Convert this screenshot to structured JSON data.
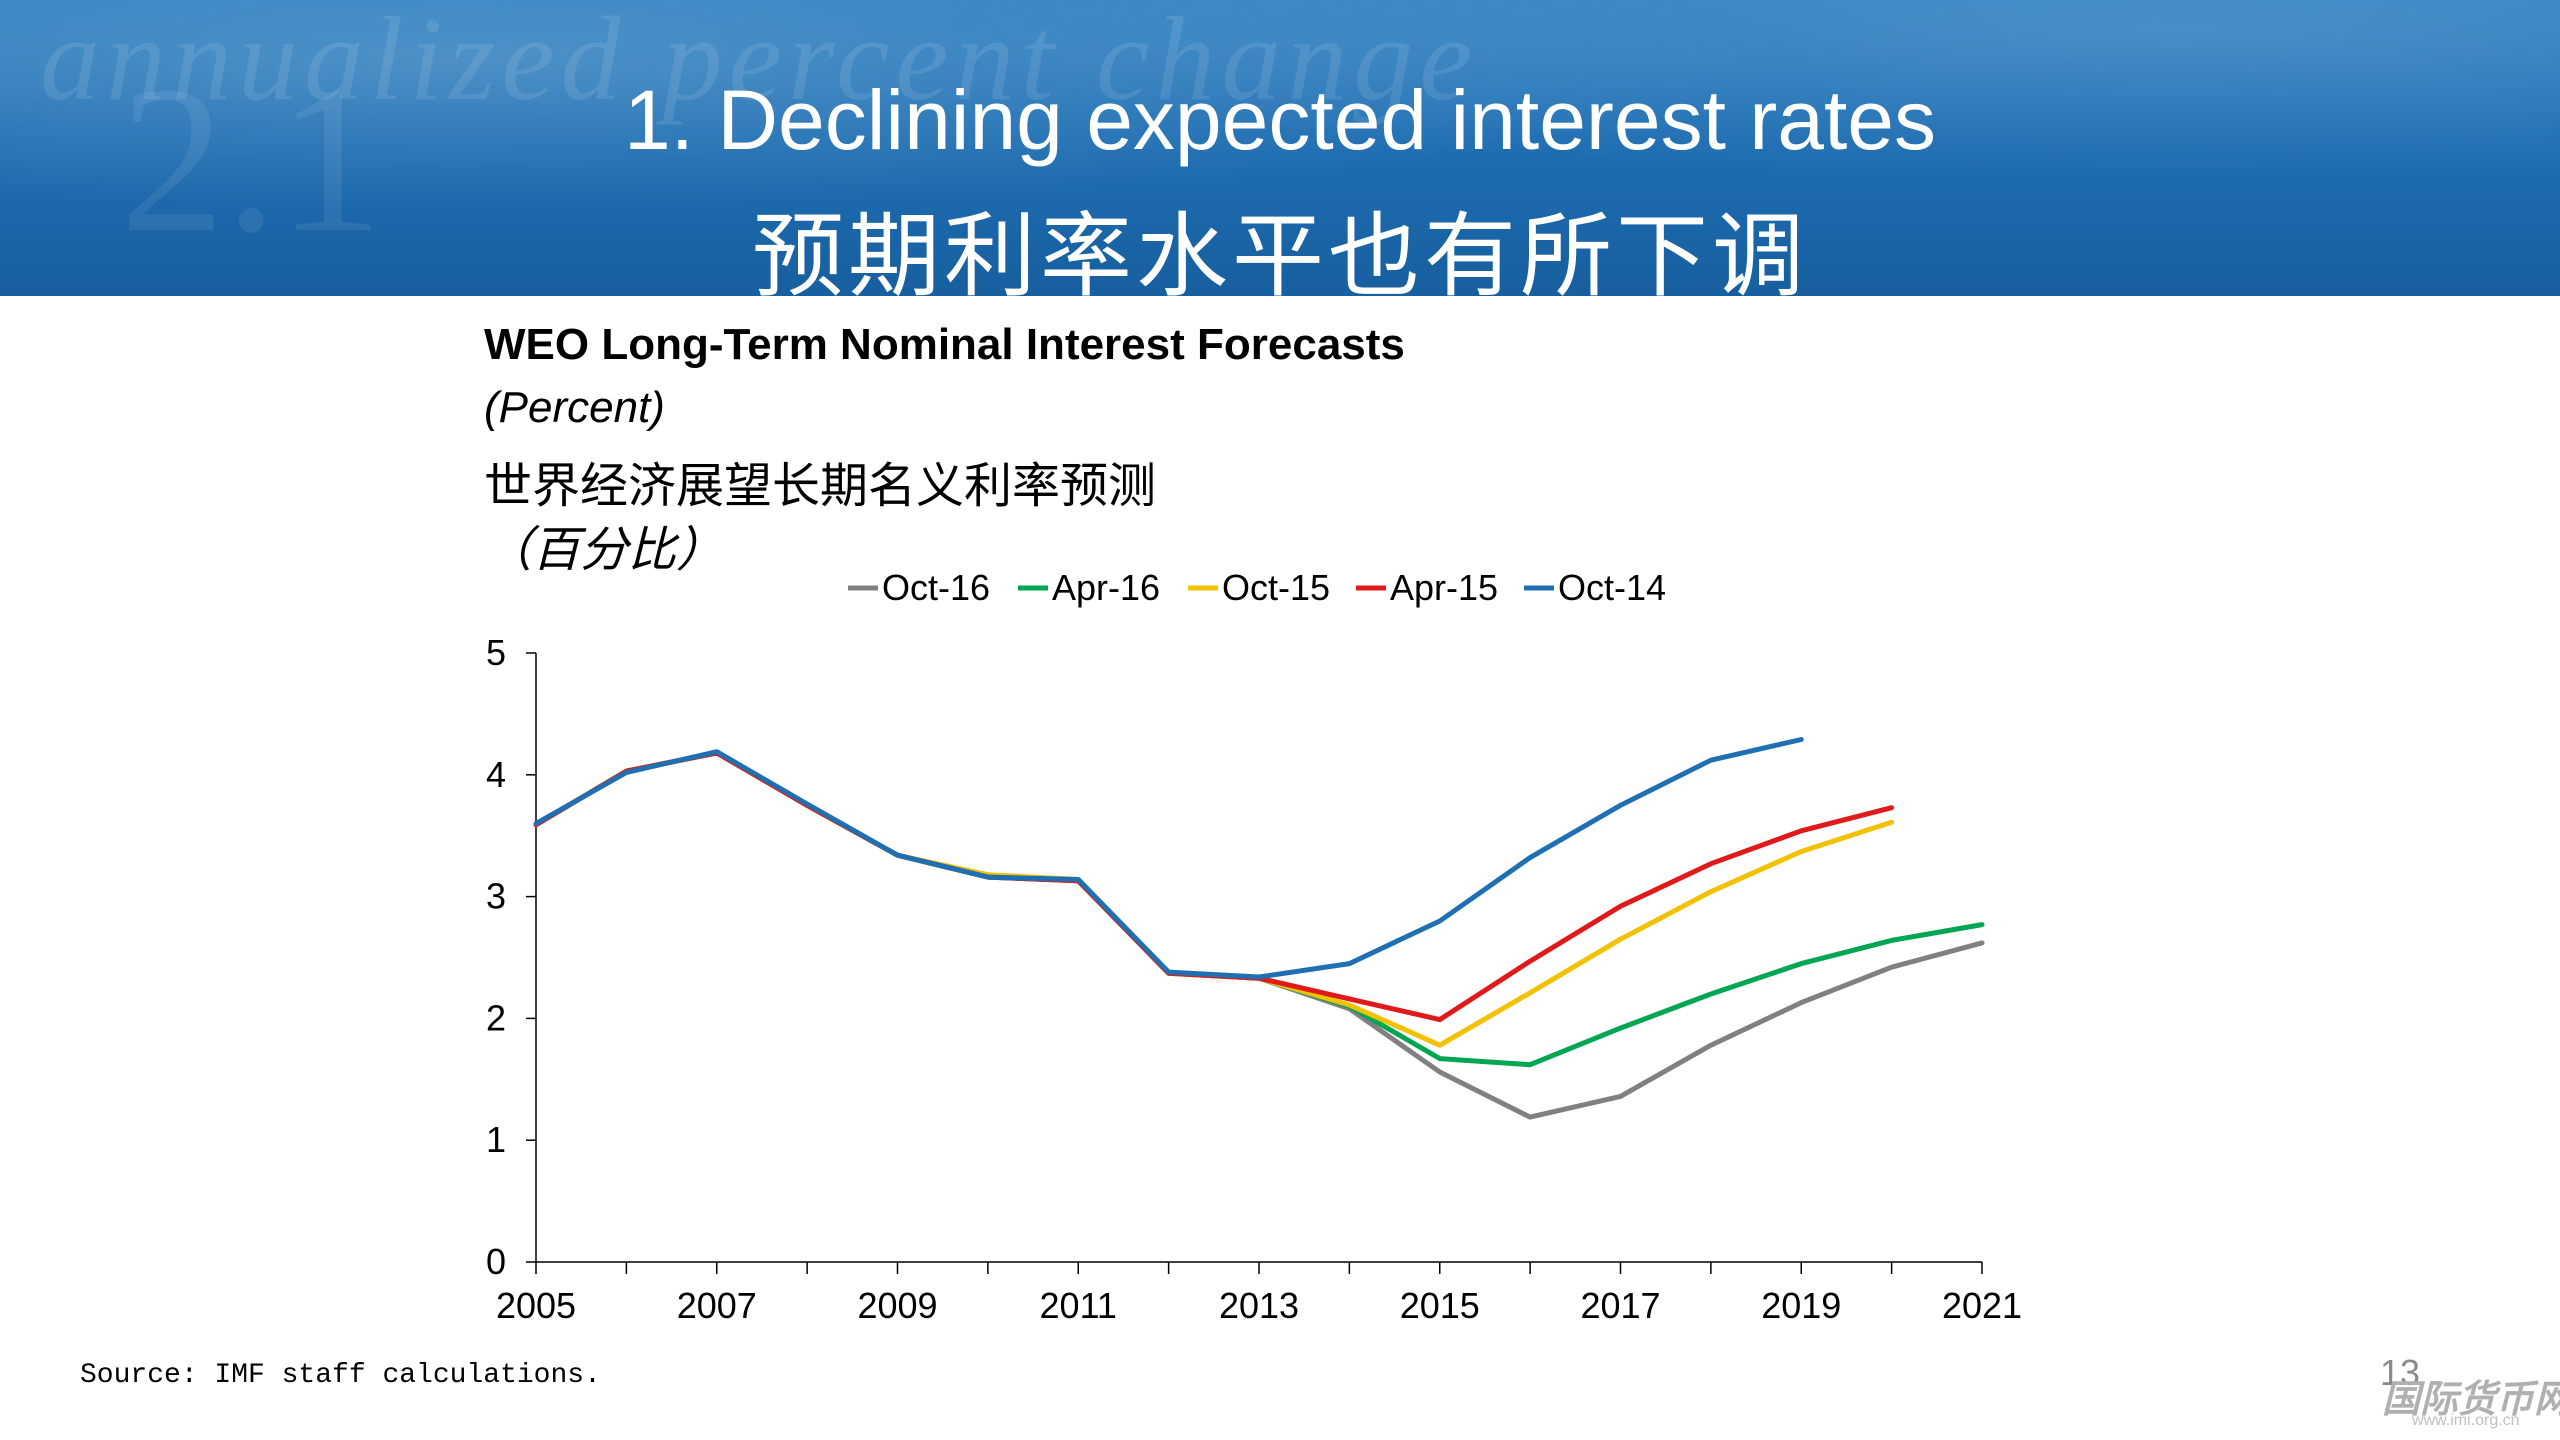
{
  "header": {
    "title_en": "1. Declining expected interest rates",
    "title_zh": "预期利率水平也有所下调",
    "decor_text": "annualized percent change",
    "decor_number": "2.1"
  },
  "chart_data": {
    "type": "line",
    "title": "WEO Long-Term Nominal Interest Forecasts",
    "unit": "(Percent)",
    "title_zh": "世界经济展望长期名义利率预测",
    "unit_zh": "（百分比）",
    "xlim": [
      2005,
      2021
    ],
    "ylim": [
      0,
      5
    ],
    "x_ticks": [
      "2005",
      "2007",
      "2009",
      "2011",
      "2013",
      "2015",
      "2017",
      "2019",
      "2021"
    ],
    "y_ticks": [
      "0",
      "1",
      "2",
      "3",
      "4",
      "5"
    ],
    "legend_position": "top",
    "grid": false,
    "series": [
      {
        "name": "Oct-16",
        "color": "#808080",
        "x": [
          2005,
          2006,
          2007,
          2008,
          2009,
          2010,
          2011,
          2012,
          2013,
          2014,
          2015,
          2016,
          2017,
          2018,
          2019,
          2020,
          2021
        ],
        "values": [
          3.59,
          4.03,
          4.18,
          3.75,
          3.34,
          3.16,
          3.13,
          2.37,
          2.33,
          2.08,
          1.56,
          1.19,
          1.36,
          1.78,
          2.13,
          2.42,
          2.62
        ]
      },
      {
        "name": "Apr-16",
        "color": "#00a651",
        "x": [
          2005,
          2006,
          2007,
          2008,
          2009,
          2010,
          2011,
          2012,
          2013,
          2014,
          2015,
          2016,
          2017,
          2018,
          2019,
          2020,
          2021
        ],
        "values": [
          3.59,
          4.03,
          4.18,
          3.75,
          3.34,
          3.16,
          3.13,
          2.37,
          2.33,
          2.1,
          1.67,
          1.62,
          1.92,
          2.2,
          2.45,
          2.64,
          2.77
        ]
      },
      {
        "name": "Oct-15",
        "color": "#f2c100",
        "x": [
          2005,
          2006,
          2007,
          2008,
          2009,
          2010,
          2011,
          2012,
          2013,
          2014,
          2015,
          2016,
          2017,
          2018,
          2019,
          2020
        ],
        "values": [
          3.59,
          4.03,
          4.18,
          3.75,
          3.34,
          3.18,
          3.14,
          2.37,
          2.33,
          2.11,
          1.78,
          2.21,
          2.65,
          3.04,
          3.37,
          3.61
        ]
      },
      {
        "name": "Apr-15",
        "color": "#e0191a",
        "x": [
          2005,
          2006,
          2007,
          2008,
          2009,
          2010,
          2011,
          2012,
          2013,
          2014,
          2015,
          2016,
          2017,
          2018,
          2019,
          2020
        ],
        "values": [
          3.59,
          4.03,
          4.18,
          3.75,
          3.34,
          3.16,
          3.13,
          2.37,
          2.33,
          2.16,
          1.99,
          2.47,
          2.92,
          3.27,
          3.54,
          3.73
        ]
      },
      {
        "name": "Oct-14",
        "color": "#1f6fb3",
        "x": [
          2005,
          2006,
          2007,
          2008,
          2009,
          2010,
          2011,
          2012,
          2013,
          2014,
          2015,
          2016,
          2017,
          2018,
          2019
        ],
        "values": [
          3.6,
          4.02,
          4.19,
          3.76,
          3.34,
          3.16,
          3.14,
          2.38,
          2.34,
          2.45,
          2.8,
          3.32,
          3.75,
          4.12,
          4.29
        ]
      }
    ]
  },
  "footer": {
    "source": "Source: IMF staff calculations.",
    "page_number": "13",
    "logo_text": "国际货币网",
    "logo_url": "www.imi.org.cn"
  }
}
